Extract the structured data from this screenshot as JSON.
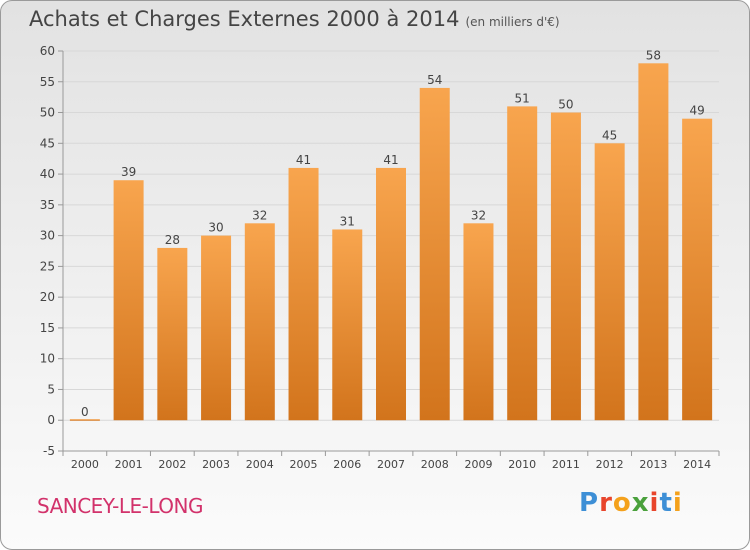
{
  "title": "Achats et Charges Externes 2000 à 2014",
  "subtitle": "(en milliers d'€)",
  "commune": "SANCEY-LE-LONG",
  "logo": {
    "text": "Proxiti",
    "letter_colors": [
      "#3d8fd6",
      "#e8452c",
      "#f4a11c",
      "#4aa13c",
      "#e8452c",
      "#3d8fd6",
      "#f4a11c"
    ]
  },
  "colors": {
    "bar_light": "#f8a54e",
    "bar_dark": "#d2741c",
    "grid": "#d8d8d8",
    "axis": "#999999",
    "text": "#444444",
    "commune": "#d2326b"
  },
  "chart_data": {
    "type": "bar",
    "categories": [
      "2000",
      "2001",
      "2002",
      "2003",
      "2004",
      "2005",
      "2006",
      "2007",
      "2008",
      "2009",
      "2010",
      "2011",
      "2012",
      "2013",
      "2014"
    ],
    "values": [
      0,
      39,
      28,
      30,
      32,
      41,
      31,
      41,
      54,
      32,
      51,
      50,
      45,
      58,
      49
    ],
    "data_labels": [
      "0",
      "39",
      "28",
      "30",
      "32",
      "41",
      "31",
      "41",
      "54",
      "32",
      "51",
      "50",
      "45",
      "58",
      "49"
    ],
    "ylim": [
      -5,
      60
    ],
    "yticks": [
      "-5",
      "0",
      "5",
      "10",
      "15",
      "20",
      "25",
      "30",
      "35",
      "40",
      "45",
      "50",
      "55",
      "60"
    ],
    "ytick_values": [
      -5,
      0,
      5,
      10,
      15,
      20,
      25,
      30,
      35,
      40,
      45,
      50,
      55,
      60
    ],
    "grid": true,
    "legend": "none"
  }
}
